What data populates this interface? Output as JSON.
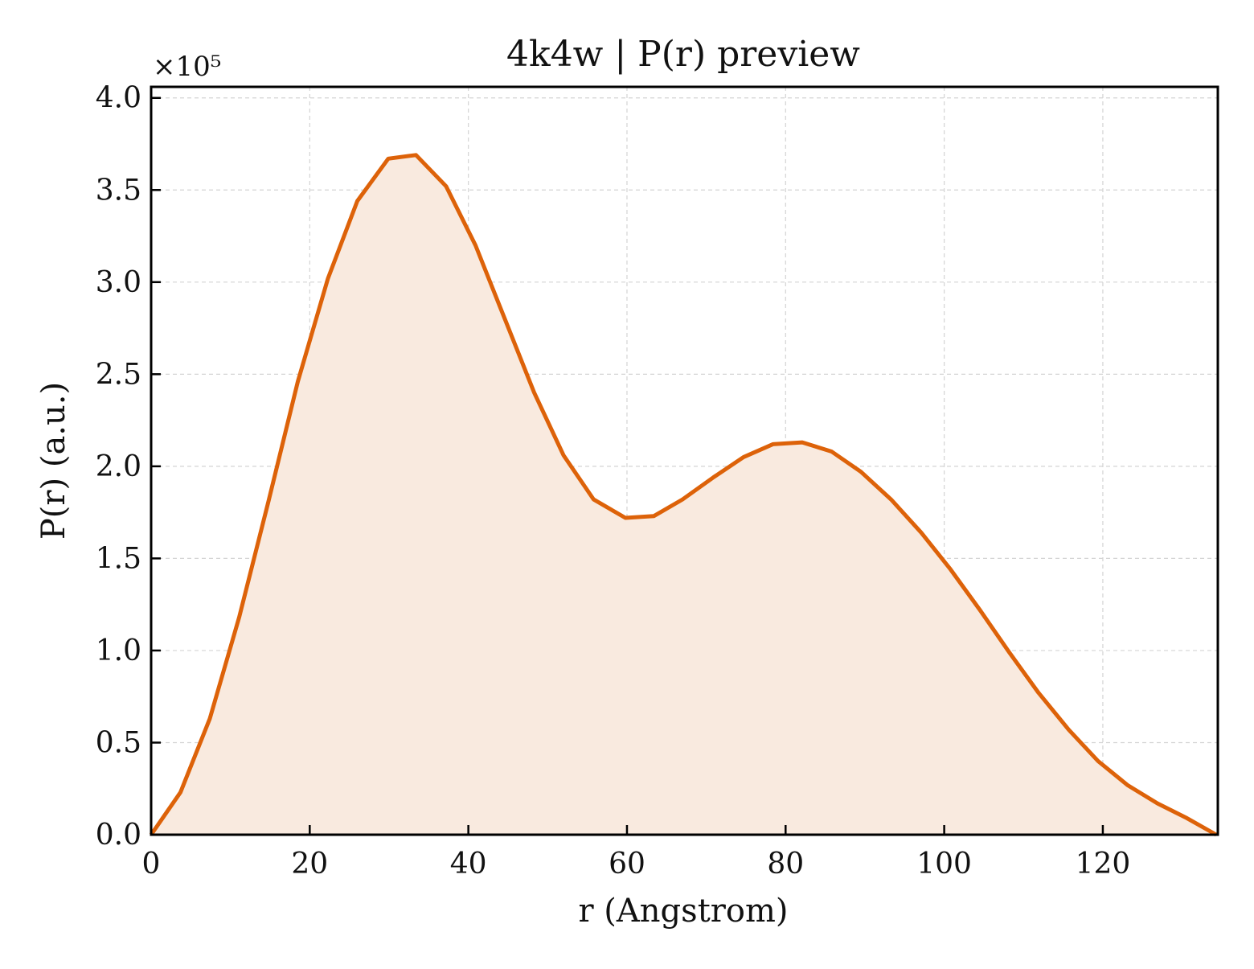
{
  "chart_data": {
    "type": "area",
    "title": "4k4w | P(r) preview",
    "xlabel": "r (Angstrom)",
    "ylabel": "P(r) (a.u.)",
    "y_offset_text": "×10⁵",
    "xlim": [
      0,
      134.5
    ],
    "ylim": [
      0,
      4.06
    ],
    "xticks": [
      0,
      20,
      40,
      60,
      80,
      100,
      120
    ],
    "yticks": [
      0.0,
      0.5,
      1.0,
      1.5,
      2.0,
      2.5,
      3.0,
      3.5,
      4.0
    ],
    "xtick_labels": [
      "0",
      "20",
      "40",
      "60",
      "80",
      "100",
      "120"
    ],
    "ytick_labels": [
      "0.0",
      "0.5",
      "1.0",
      "1.5",
      "2.0",
      "2.5",
      "3.0",
      "3.5",
      "4.0"
    ],
    "grid": true,
    "colors": {
      "line": "#dd6209",
      "fill": "#f9eadf",
      "grid": "#d4d4d4",
      "axes": "#000000"
    },
    "series": [
      {
        "x": [
          0,
          3.7,
          7.4,
          11.1,
          14.8,
          18.5,
          22.3,
          26.0,
          29.9,
          33.4,
          37.2,
          40.9,
          44.6,
          48.3,
          52.0,
          55.8,
          59.8,
          63.4,
          67.0,
          70.9,
          74.7,
          78.4,
          82.1,
          85.8,
          89.5,
          93.3,
          97.1,
          100.8,
          104.5,
          108.2,
          111.9,
          115.7,
          119.4,
          123.1,
          126.9,
          130.6,
          134.3
        ],
        "y": [
          0.0,
          0.23,
          0.63,
          1.18,
          1.81,
          2.46,
          3.02,
          3.44,
          3.67,
          3.69,
          3.52,
          3.2,
          2.8,
          2.4,
          2.06,
          1.82,
          1.72,
          1.73,
          1.82,
          1.94,
          2.05,
          2.12,
          2.13,
          2.08,
          1.97,
          1.82,
          1.64,
          1.44,
          1.22,
          0.99,
          0.77,
          0.57,
          0.4,
          0.27,
          0.17,
          0.09,
          0.0
        ]
      }
    ]
  }
}
